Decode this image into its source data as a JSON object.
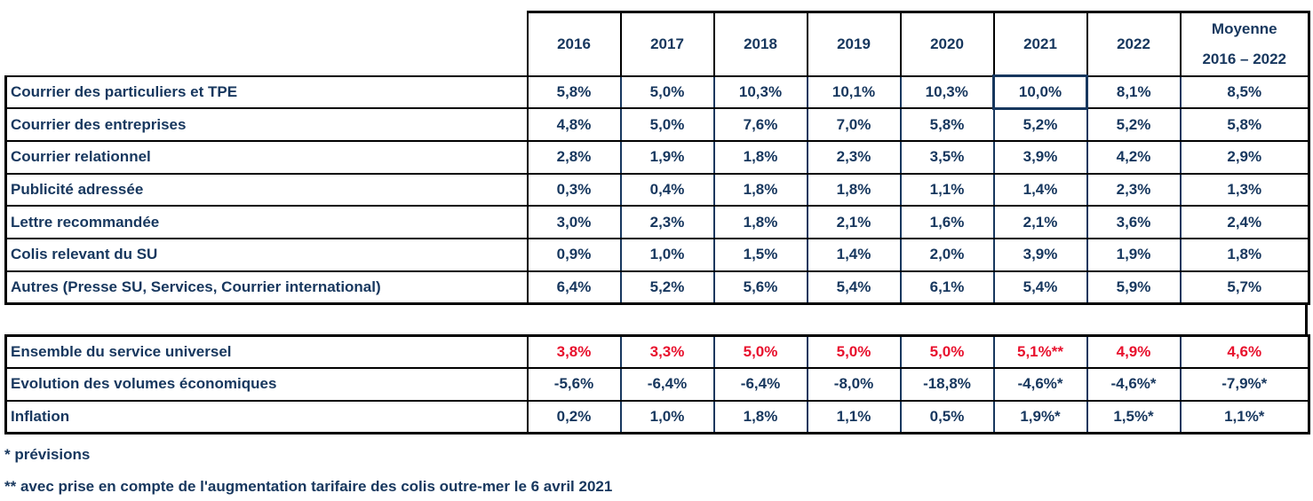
{
  "colors": {
    "text_navy": "#17375E",
    "value_red": "#E8112D",
    "border_black": "#000000",
    "border_navy": "#17375E"
  },
  "header": {
    "corner": "",
    "columns": [
      "2016",
      "2017",
      "2018",
      "2019",
      "2020",
      "2021",
      "2022"
    ],
    "average_line1": "Moyenne",
    "average_line2": "2016 – 2022"
  },
  "selected_cell": {
    "row": 0,
    "col": 5
  },
  "table1": {
    "rows": [
      {
        "label": "Courrier des particuliers et TPE",
        "values": [
          "5,8%",
          "5,0%",
          "10,3%",
          "10,1%",
          "10,3%",
          "10,0%",
          "8,1%",
          "8,5%"
        ]
      },
      {
        "label": "Courrier des entreprises",
        "values": [
          "4,8%",
          "5,0%",
          "7,6%",
          "7,0%",
          "5,8%",
          "5,2%",
          "5,2%",
          "5,8%"
        ]
      },
      {
        "label": "Courrier relationnel",
        "values": [
          "2,8%",
          "1,9%",
          "1,8%",
          "2,3%",
          "3,5%",
          "3,9%",
          "4,2%",
          "2,9%"
        ]
      },
      {
        "label": "Publicité adressée",
        "values": [
          "0,3%",
          "0,4%",
          "1,8%",
          "1,8%",
          "1,1%",
          "1,4%",
          "2,3%",
          "1,3%"
        ]
      },
      {
        "label": "Lettre recommandée",
        "values": [
          "3,0%",
          "2,3%",
          "1,8%",
          "2,1%",
          "1,6%",
          "2,1%",
          "3,6%",
          "2,4%"
        ]
      },
      {
        "label": "Colis relevant du SU",
        "values": [
          "0,9%",
          "1,0%",
          "1,5%",
          "1,4%",
          "2,0%",
          "3,9%",
          "1,9%",
          "1,8%"
        ]
      },
      {
        "label": "Autres (Presse SU, Services, Courrier international)",
        "values": [
          "6,4%",
          "5,2%",
          "5,6%",
          "5,4%",
          "6,1%",
          "5,4%",
          "5,9%",
          "5,7%"
        ]
      }
    ]
  },
  "table2": {
    "rows": [
      {
        "label": "Ensemble du service universel",
        "color": "red",
        "values": [
          "3,8%",
          "3,3%",
          "5,0%",
          "5,0%",
          "5,0%",
          "5,1%**",
          "4,9%",
          "4,6%"
        ]
      },
      {
        "label": "Evolution des volumes économiques",
        "values": [
          "-5,6%",
          "-6,4%",
          "-6,4%",
          "-8,0%",
          "-18,8%",
          "-4,6%*",
          "-4,6%*",
          "-7,9%*"
        ]
      },
      {
        "label": "Inflation",
        "values": [
          "0,2%",
          "1,0%",
          "1,8%",
          "1,1%",
          "0,5%",
          "1,9%*",
          "1,5%*",
          "1,1%*"
        ]
      }
    ]
  },
  "footnotes": [
    "* prévisions",
    "** avec prise en compte de l'augmentation tarifaire des colis outre-mer le 6 avril 2021"
  ]
}
